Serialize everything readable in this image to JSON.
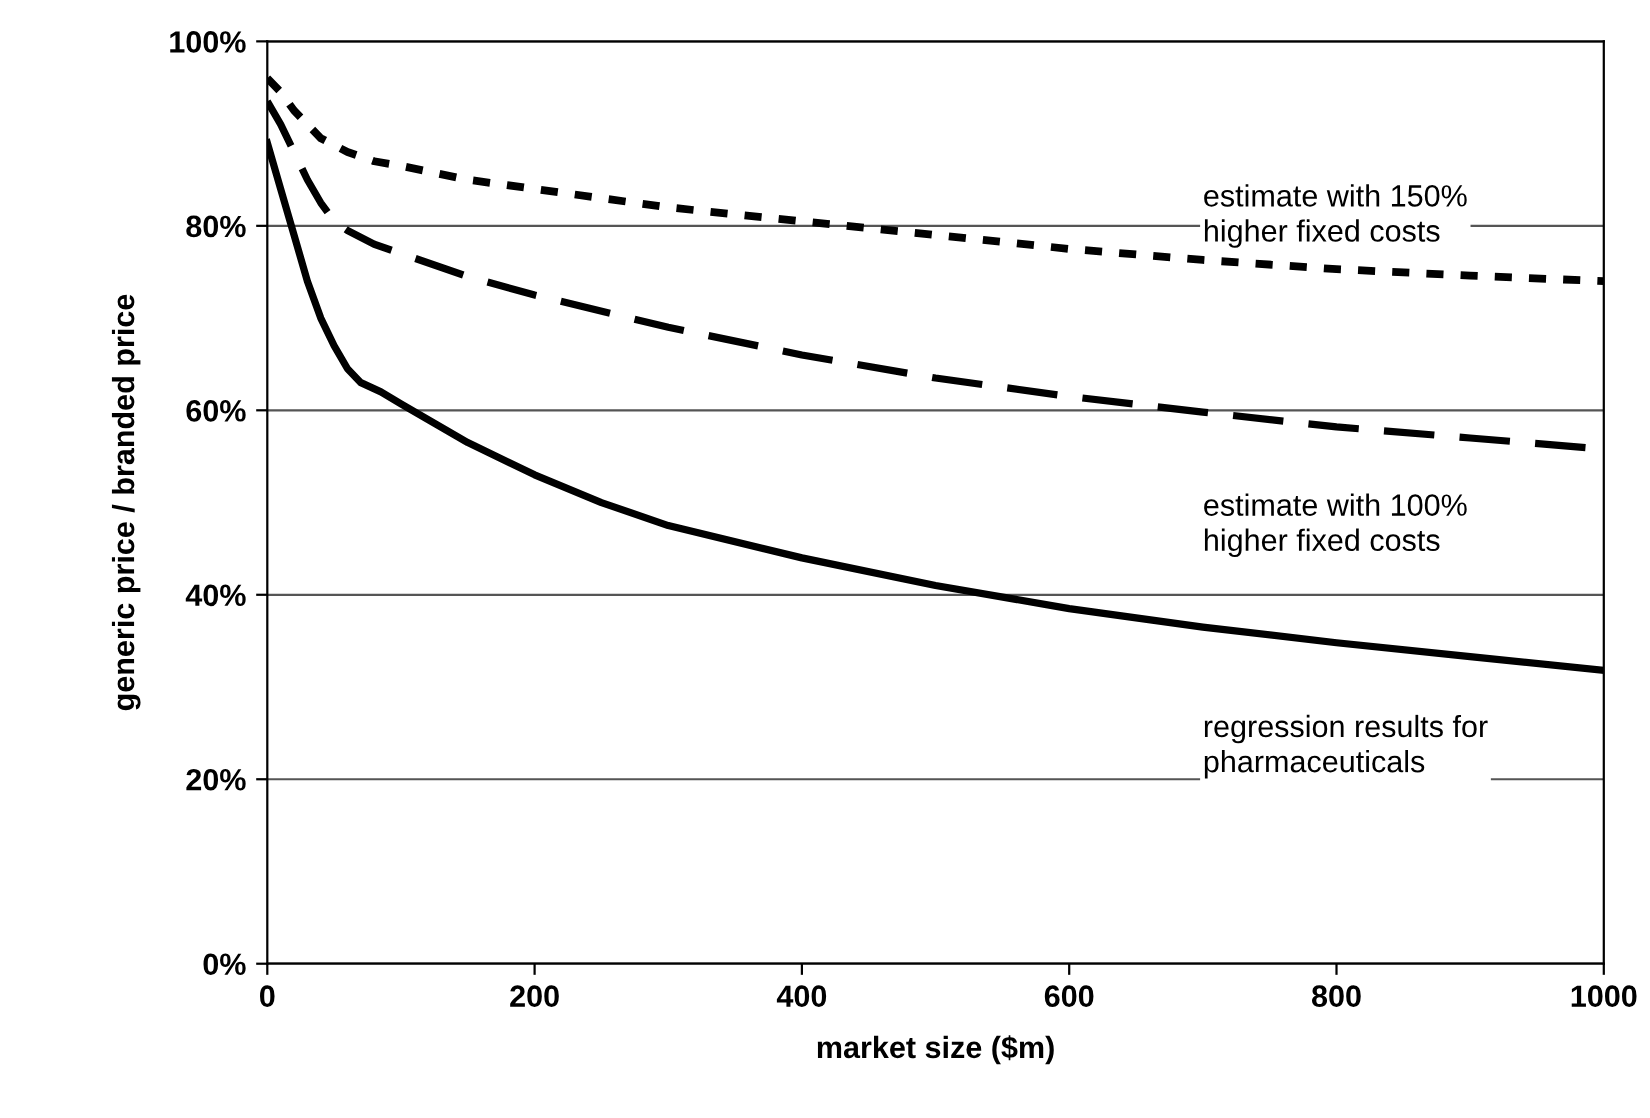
{
  "chart_data": {
    "type": "line",
    "xlabel": "market size ($m)",
    "ylabel": "generic price / branded price",
    "xlim": [
      0,
      1000
    ],
    "xticks": [
      0,
      200,
      400,
      600,
      800,
      1000
    ],
    "ylim": [
      0,
      1
    ],
    "yticks": [
      {
        "value": 0,
        "label": "0%"
      },
      {
        "value": 0.2,
        "label": "20%"
      },
      {
        "value": 0.4,
        "label": "40%"
      },
      {
        "value": 0.6,
        "label": "60%"
      },
      {
        "value": 0.8,
        "label": "80%"
      },
      {
        "value": 1,
        "label": "100%"
      }
    ],
    "grid": "y",
    "marker": "none",
    "series": [
      {
        "name": "regression results for\npharmaceuticals",
        "color": "#000000",
        "line_style": "solid",
        "x": [
          0,
          10,
          20,
          30,
          40,
          50,
          60,
          70,
          85,
          100,
          150,
          200,
          250,
          300,
          400,
          500,
          600,
          700,
          800,
          900,
          1000
        ],
        "values": [
          0.89,
          0.84,
          0.79,
          0.74,
          0.7,
          0.67,
          0.645,
          0.63,
          0.62,
          0.607,
          0.565,
          0.53,
          0.5,
          0.475,
          0.44,
          0.41,
          0.385,
          0.365,
          0.348,
          0.333,
          0.318
        ]
      },
      {
        "name": "estimate with 100%\nhigher fixed costs",
        "color": "#000000",
        "line_style": "dashed",
        "x": [
          0,
          10,
          20,
          30,
          40,
          50,
          60,
          80,
          100,
          150,
          200,
          300,
          400,
          500,
          600,
          700,
          800,
          900,
          1000
        ],
        "values": [
          0.935,
          0.91,
          0.88,
          0.85,
          0.825,
          0.805,
          0.795,
          0.78,
          0.77,
          0.745,
          0.725,
          0.69,
          0.66,
          0.635,
          0.615,
          0.598,
          0.582,
          0.57,
          0.558
        ]
      },
      {
        "name": "estimate with 150%\nhigher fixed costs",
        "color": "#000000",
        "line_style": "dotted",
        "x": [
          0,
          10,
          20,
          30,
          40,
          60,
          80,
          100,
          150,
          200,
          300,
          400,
          500,
          600,
          700,
          800,
          900,
          1000
        ],
        "values": [
          0.96,
          0.945,
          0.925,
          0.91,
          0.895,
          0.88,
          0.87,
          0.865,
          0.85,
          0.84,
          0.82,
          0.805,
          0.79,
          0.775,
          0.763,
          0.753,
          0.746,
          0.74
        ]
      }
    ]
  }
}
